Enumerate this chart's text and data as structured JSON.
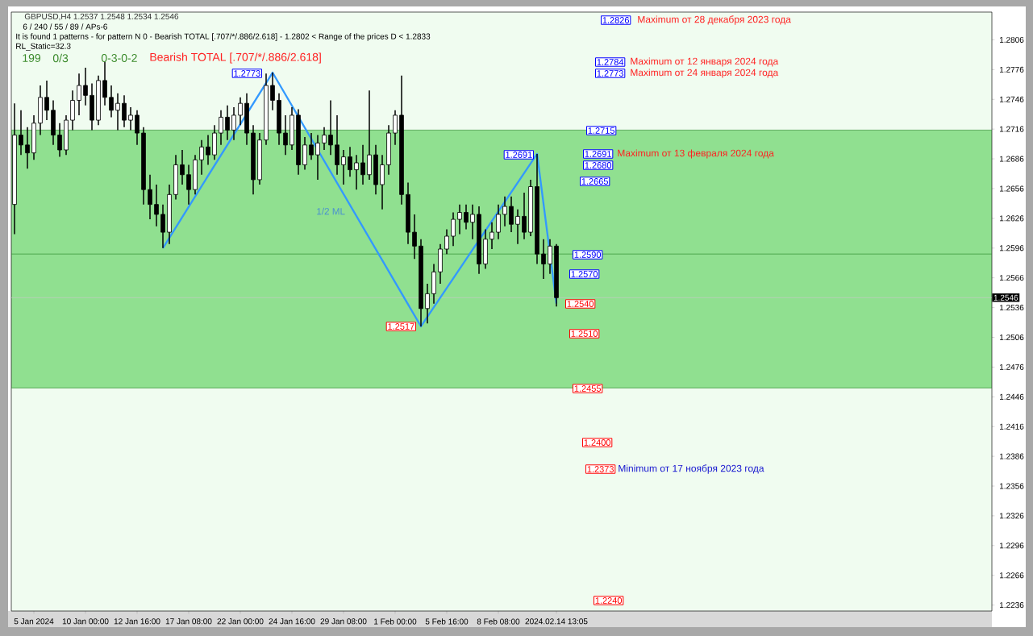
{
  "chart_data": {
    "type": "candlestick",
    "title": "GBPUSD,H4  1.2537 1.2548 1.2534 1.2546",
    "categories": [
      null,
      null,
      null,
      "5 Jan 2024",
      null,
      null,
      null,
      null,
      null,
      null,
      null,
      "10 Jan 00:00",
      null,
      null,
      null,
      null,
      null,
      null,
      null,
      "12 Jan 16:00",
      null,
      null,
      null,
      null,
      null,
      null,
      null,
      "17 Jan 08:00",
      null,
      null,
      null,
      null,
      null,
      null,
      null,
      "22 Jan 00:00",
      null,
      null,
      null,
      null,
      null,
      null,
      null,
      "24 Jan 16:00",
      null,
      null,
      null,
      null,
      null,
      null,
      null,
      "29 Jan 08:00",
      null,
      null,
      null,
      null,
      null,
      null,
      null,
      "1 Feb 00:00",
      null,
      null,
      null,
      null,
      null,
      null,
      null,
      "5 Feb 16:00",
      null,
      null,
      null,
      null,
      null,
      null,
      null,
      "8 Feb 08:00",
      null,
      null,
      null,
      null,
      null,
      null,
      null,
      null,
      "2024.02.14 13:05",
      null,
      null,
      null,
      null,
      null,
      null,
      null,
      null,
      null,
      null,
      null,
      null,
      null,
      null,
      null,
      null,
      null,
      null,
      null,
      null,
      null,
      null,
      null,
      null,
      null,
      null,
      null,
      null,
      null,
      null,
      null,
      null,
      null,
      null,
      null,
      null,
      null,
      null,
      null,
      null,
      null,
      null,
      null,
      null,
      null,
      null,
      null,
      null,
      null,
      null,
      null,
      null,
      null,
      null,
      null,
      null,
      null,
      null,
      null,
      null,
      null,
      null,
      null,
      null,
      null,
      null,
      null
    ],
    "ohlc": [
      [
        1.264,
        1.2742,
        1.261,
        1.271
      ],
      [
        1.271,
        1.2735,
        1.269,
        1.27
      ],
      [
        1.27,
        1.2718,
        1.2676,
        1.2692
      ],
      [
        1.2692,
        1.273,
        1.2685,
        1.2722
      ],
      [
        1.2722,
        1.276,
        1.271,
        1.2748
      ],
      [
        1.2748,
        1.2765,
        1.2725,
        1.2735
      ],
      [
        1.2735,
        1.2745,
        1.27,
        1.271
      ],
      [
        1.271,
        1.2722,
        1.2688,
        1.2695
      ],
      [
        1.2695,
        1.273,
        1.269,
        1.2725
      ],
      [
        1.2725,
        1.2755,
        1.2715,
        1.2745
      ],
      [
        1.2745,
        1.2772,
        1.273,
        1.276
      ],
      [
        1.276,
        1.2778,
        1.274,
        1.275
      ],
      [
        1.275,
        1.2762,
        1.2715,
        1.2725
      ],
      [
        1.2725,
        1.277,
        1.272,
        1.2765
      ],
      [
        1.2765,
        1.2784,
        1.274,
        1.2748
      ],
      [
        1.2748,
        1.276,
        1.2728,
        1.2735
      ],
      [
        1.2735,
        1.2752,
        1.2715,
        1.2742
      ],
      [
        1.2742,
        1.275,
        1.2718,
        1.2725
      ],
      [
        1.2725,
        1.2738,
        1.2715,
        1.273
      ],
      [
        1.273,
        1.2735,
        1.27,
        1.2712
      ],
      [
        1.2712,
        1.2718,
        1.264,
        1.2655
      ],
      [
        1.2655,
        1.267,
        1.2625,
        1.264
      ],
      [
        1.264,
        1.266,
        1.2618,
        1.263
      ],
      [
        1.263,
        1.264,
        1.2596,
        1.2612
      ],
      [
        1.2612,
        1.266,
        1.26,
        1.265
      ],
      [
        1.265,
        1.269,
        1.2645,
        1.268
      ],
      [
        1.268,
        1.2695,
        1.266,
        1.267
      ],
      [
        1.267,
        1.268,
        1.264,
        1.2655
      ],
      [
        1.2655,
        1.269,
        1.265,
        1.2685
      ],
      [
        1.2685,
        1.2705,
        1.267,
        1.2698
      ],
      [
        1.2698,
        1.271,
        1.268,
        1.269
      ],
      [
        1.269,
        1.272,
        1.2685,
        1.2712
      ],
      [
        1.2712,
        1.2735,
        1.27,
        1.2728
      ],
      [
        1.2728,
        1.274,
        1.2705,
        1.2715
      ],
      [
        1.2715,
        1.2738,
        1.2705,
        1.273
      ],
      [
        1.273,
        1.2748,
        1.272,
        1.2742
      ],
      [
        1.2742,
        1.2752,
        1.27,
        1.2712
      ],
      [
        1.2712,
        1.272,
        1.265,
        1.2665
      ],
      [
        1.2665,
        1.2712,
        1.266,
        1.2705
      ],
      [
        1.2705,
        1.2772,
        1.27,
        1.276
      ],
      [
        1.276,
        1.2773,
        1.2735,
        1.2745
      ],
      [
        1.2745,
        1.2752,
        1.27,
        1.2712
      ],
      [
        1.2712,
        1.273,
        1.269,
        1.27
      ],
      [
        1.27,
        1.2738,
        1.2695,
        1.273
      ],
      [
        1.273,
        1.2736,
        1.267,
        1.268
      ],
      [
        1.268,
        1.2708,
        1.2675,
        1.27
      ],
      [
        1.27,
        1.2712,
        1.2685,
        1.269
      ],
      [
        1.269,
        1.271,
        1.2665,
        1.2702
      ],
      [
        1.2702,
        1.2718,
        1.2695,
        1.271
      ],
      [
        1.271,
        1.2745,
        1.269,
        1.27
      ],
      [
        1.27,
        1.273,
        1.267,
        1.268
      ],
      [
        1.268,
        1.2695,
        1.266,
        1.2688
      ],
      [
        1.2688,
        1.2698,
        1.2668,
        1.2675
      ],
      [
        1.2675,
        1.269,
        1.2655,
        1.2682
      ],
      [
        1.2682,
        1.27,
        1.266,
        1.267
      ],
      [
        1.267,
        1.2755,
        1.2665,
        1.269
      ],
      [
        1.269,
        1.27,
        1.265,
        1.266
      ],
      [
        1.266,
        1.269,
        1.2635,
        1.268
      ],
      [
        1.268,
        1.272,
        1.267,
        1.2712
      ],
      [
        1.2712,
        1.2735,
        1.27,
        1.273
      ],
      [
        1.273,
        1.277,
        1.264,
        1.265
      ],
      [
        1.265,
        1.2662,
        1.26,
        1.2612
      ],
      [
        1.2612,
        1.263,
        1.2585,
        1.2598
      ],
      [
        1.2598,
        1.2605,
        1.2517,
        1.2535
      ],
      [
        1.2535,
        1.256,
        1.252,
        1.255
      ],
      [
        1.255,
        1.258,
        1.254,
        1.2572
      ],
      [
        1.2572,
        1.26,
        1.256,
        1.2595
      ],
      [
        1.2595,
        1.2615,
        1.259,
        1.2608
      ],
      [
        1.2608,
        1.2632,
        1.2598,
        1.2625
      ],
      [
        1.2625,
        1.264,
        1.261,
        1.2632
      ],
      [
        1.2632,
        1.264,
        1.2615,
        1.2622
      ],
      [
        1.2622,
        1.264,
        1.2605,
        1.263
      ],
      [
        1.263,
        1.2638,
        1.257,
        1.258
      ],
      [
        1.258,
        1.2615,
        1.2575,
        1.2605
      ],
      [
        1.2605,
        1.2622,
        1.2595,
        1.2612
      ],
      [
        1.2612,
        1.264,
        1.2605,
        1.263
      ],
      [
        1.263,
        1.2648,
        1.2618,
        1.2638
      ],
      [
        1.2638,
        1.2648,
        1.2612,
        1.262
      ],
      [
        1.262,
        1.2635,
        1.26,
        1.2628
      ],
      [
        1.2628,
        1.2652,
        1.2605,
        1.2612
      ],
      [
        1.2612,
        1.2665,
        1.2608,
        1.2658
      ],
      [
        1.2658,
        1.2691,
        1.258,
        1.259
      ],
      [
        1.259,
        1.2605,
        1.2565,
        1.258
      ],
      [
        1.258,
        1.2605,
        1.257,
        1.2598
      ],
      [
        1.2598,
        1.26,
        1.2537,
        1.2546
      ],
      null,
      null,
      null,
      null,
      null,
      null,
      null,
      null,
      null,
      null,
      null,
      null,
      null,
      null,
      null,
      null,
      null,
      null,
      null,
      null,
      null,
      null,
      null,
      null,
      null,
      null,
      null,
      null,
      null,
      null,
      null,
      null,
      null,
      null,
      null,
      null,
      null,
      null,
      null,
      null,
      null,
      null,
      null,
      null,
      null,
      null,
      null,
      null,
      null,
      null,
      null,
      null,
      null,
      null,
      null,
      null,
      null,
      null,
      null,
      null,
      null,
      null,
      null,
      null,
      null,
      null,
      null
    ],
    "series": [
      {
        "type": "line",
        "color": "#3399ff",
        "values": [
          null,
          null,
          null,
          null,
          null,
          null,
          null,
          null,
          null,
          null,
          null,
          null,
          null,
          null,
          null,
          null,
          null,
          null,
          null,
          null,
          null,
          null,
          null,
          1.2596,
          null,
          null,
          null,
          null,
          null,
          null,
          null,
          null,
          null,
          null,
          null,
          null,
          null,
          null,
          null,
          null,
          1.2773,
          null,
          null,
          null,
          null,
          null,
          null,
          null,
          null,
          null,
          null,
          null,
          null,
          null,
          null,
          null,
          null,
          null,
          null,
          null,
          null,
          null,
          null,
          1.2517,
          null,
          null,
          null,
          null,
          null,
          null,
          null,
          null,
          null,
          null,
          null,
          null,
          null,
          null,
          null,
          null,
          null,
          1.2691,
          null,
          null,
          1.254,
          null,
          null,
          null,
          null,
          null,
          null,
          null,
          null,
          null,
          null,
          null,
          null,
          null,
          null,
          null,
          null,
          null,
          null,
          null,
          null,
          null,
          null,
          null,
          null,
          null,
          null,
          null,
          null,
          null,
          null,
          null,
          null,
          null,
          null,
          null,
          null,
          null,
          null,
          null,
          null,
          null,
          null,
          null,
          null,
          null,
          null,
          null,
          null,
          null,
          null,
          null,
          null,
          null,
          null,
          null,
          null,
          null,
          null,
          null,
          null,
          null,
          null,
          null,
          null,
          null,
          null,
          null
        ]
      }
    ],
    "ylim": [
      1.223,
      1.2834
    ],
    "yticks": [
      1.2236,
      1.2266,
      1.2296,
      1.2326,
      1.2356,
      1.2386,
      1.2416,
      1.2446,
      1.2476,
      1.2506,
      1.2536,
      1.2566,
      1.2596,
      1.2626,
      1.2656,
      1.2686,
      1.2716,
      1.2746,
      1.2776,
      1.2806
    ],
    "bands": [
      {
        "axis": "y",
        "from": 1.2455,
        "to": 1.2715,
        "color": "#90e090"
      }
    ],
    "ref_lines": [
      {
        "axis": "y",
        "value": 1.2715,
        "color": "#2e8b2e"
      },
      {
        "axis": "y",
        "value": 1.2455,
        "color": "#2e8b2e"
      },
      {
        "axis": "y",
        "value": 1.259,
        "color": "#2e8b2e"
      },
      {
        "axis": "y",
        "value": 1.2546,
        "label": "1.2546",
        "color": "#c8c8c8"
      }
    ],
    "annotations": [
      "6 / 240 / 55 / 89 / APs-6",
      "It is found 1 patterns  -  for pattern N 0 - Bearish TOTAL [.707/*/.886/2.618] - 1.2802 < Range of the prices D < 1.2833",
      "RL_Static=32.3",
      "199",
      "0/3",
      "0-3-0-2",
      "Bearish TOTAL [.707/*/.886/2.618]",
      "1/2 ML",
      "1.2773",
      "1.2691",
      "1.2517",
      "1.2826",
      "1.2784",
      "1.2773",
      "1.2715",
      "1.2691",
      "1.2680",
      "1.2665",
      "1.2590",
      "1.2570",
      "1.2540",
      "1.2510",
      "1.2455",
      "1.2400",
      "1.2373",
      "1.2240",
      "Maximum от 28 декабря 2023 года",
      "Maximum от 12 января 2024 года",
      "Maximum от 24 января 2024 года",
      "Maximum от 13 февраля 2024 года",
      "Minimum от 17 ноября 2023 года"
    ]
  }
}
